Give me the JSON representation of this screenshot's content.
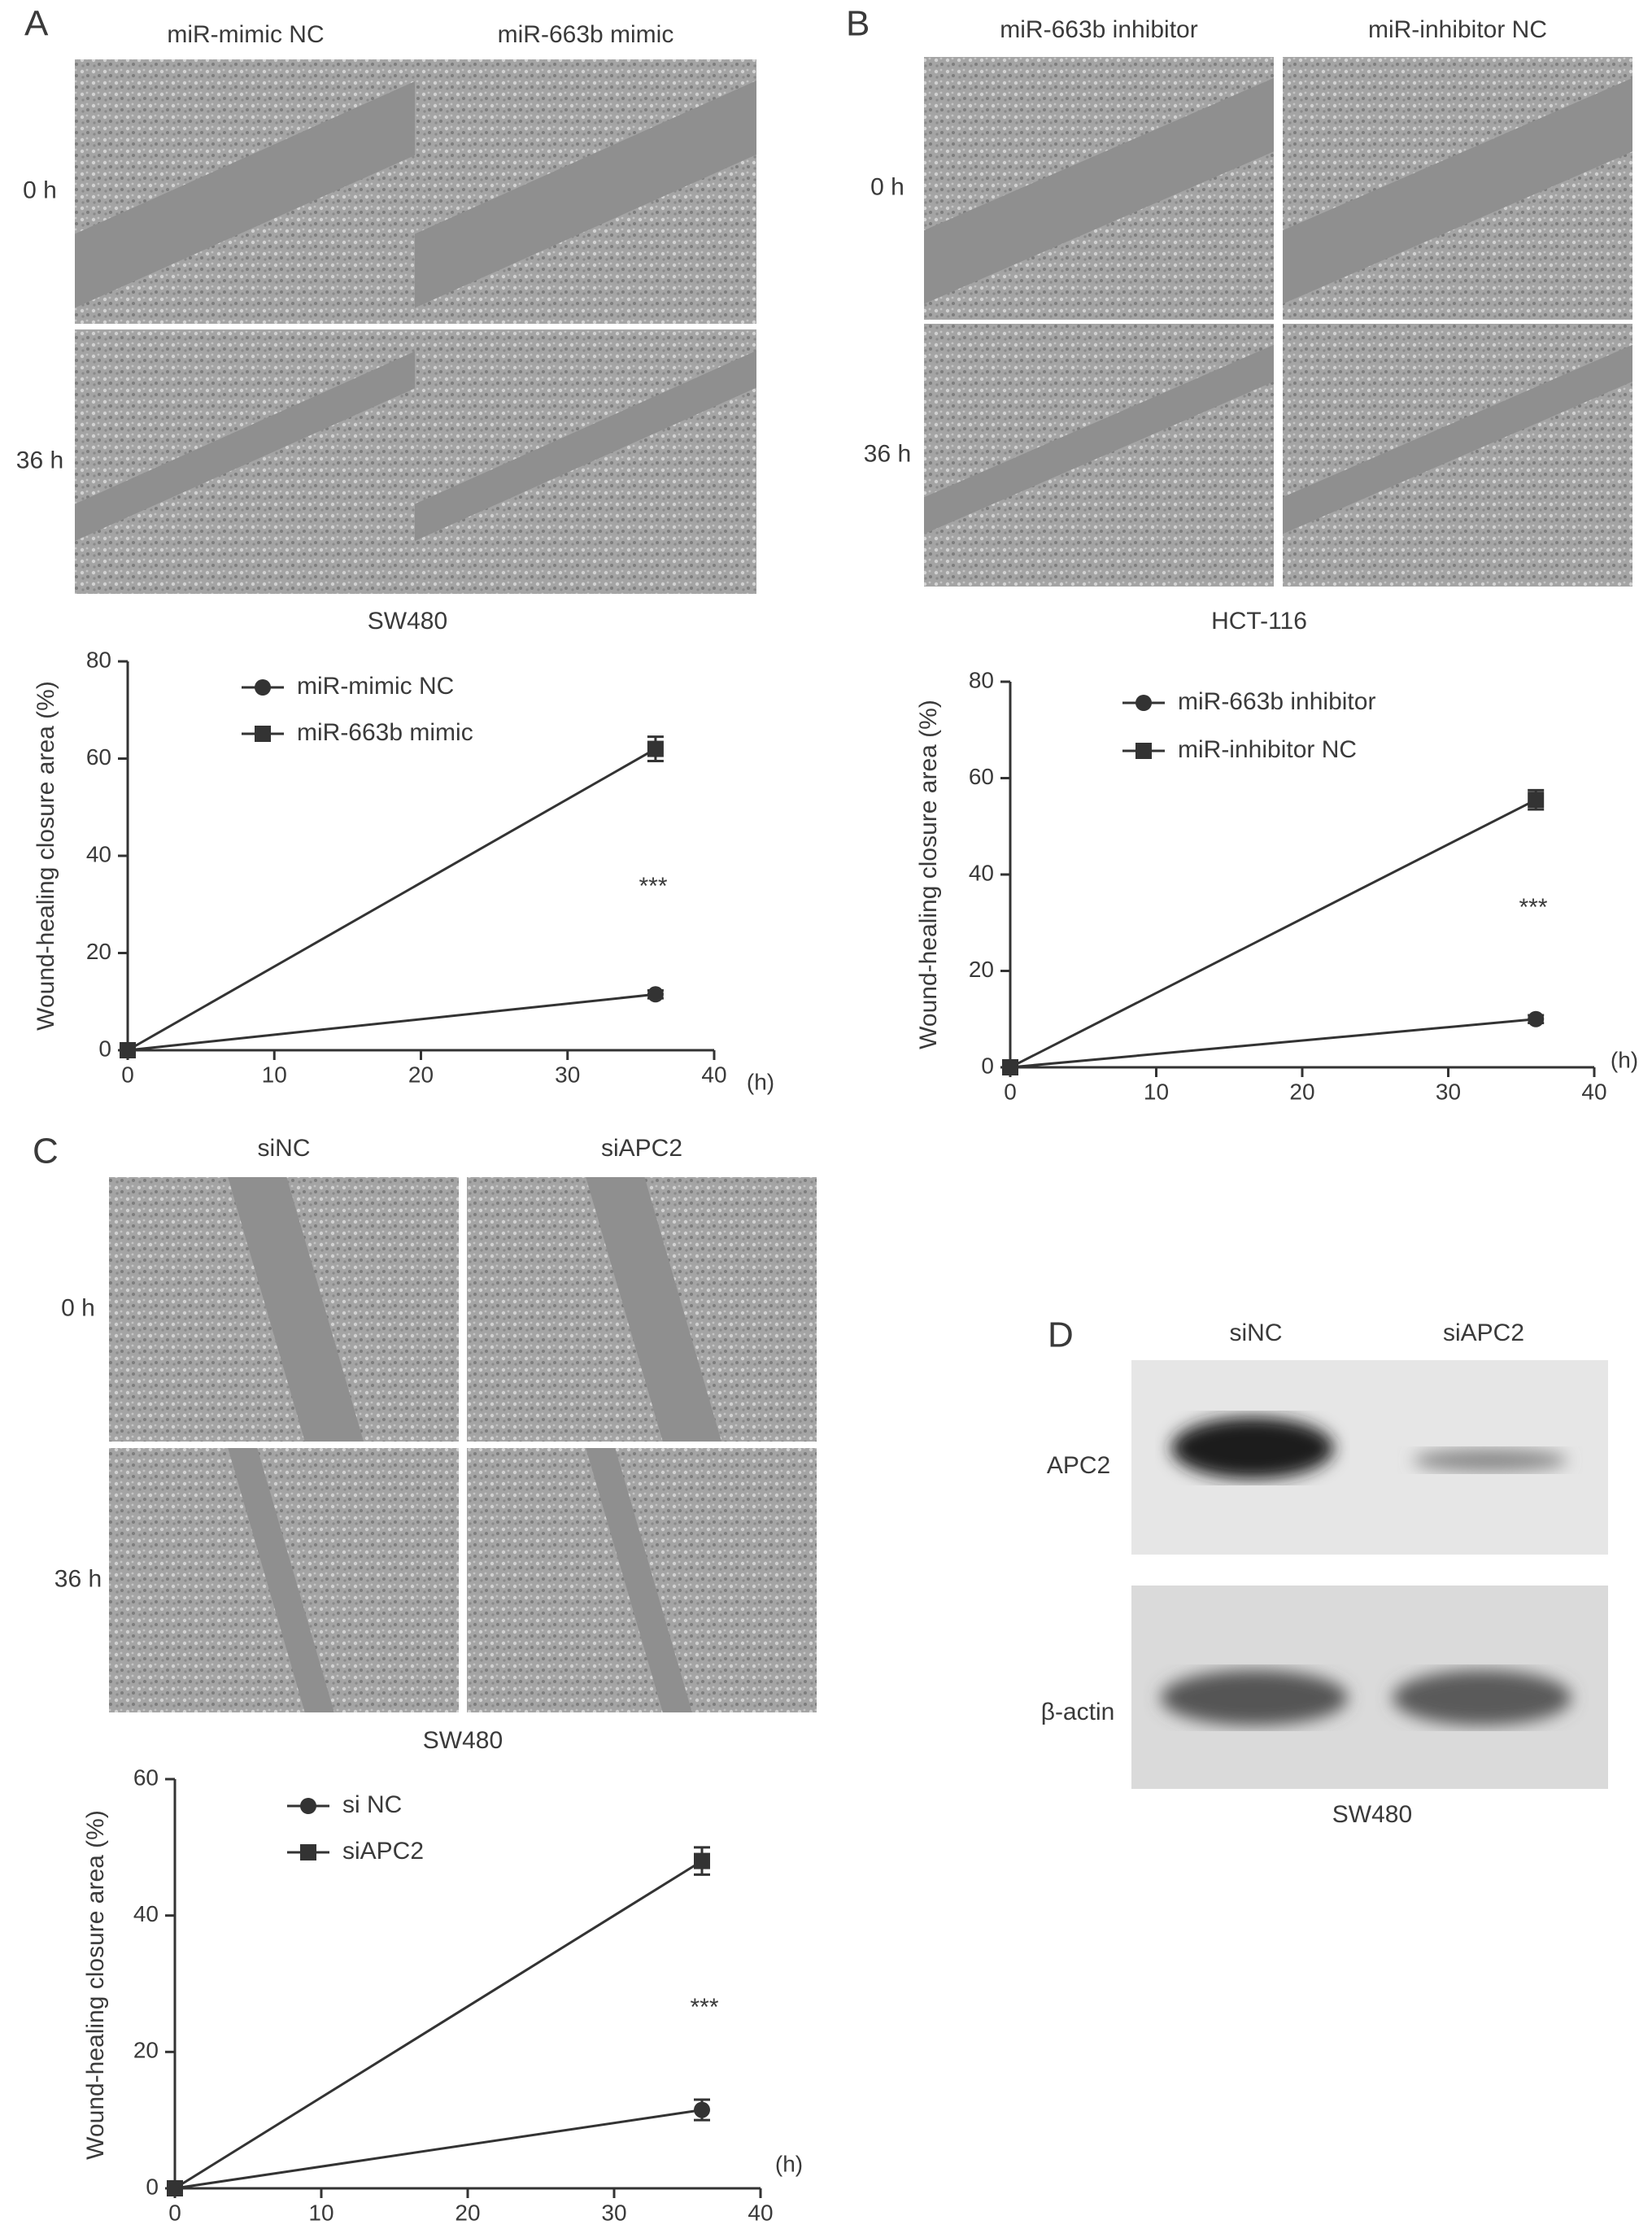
{
  "panels": [
    {
      "label": "A",
      "column_labels": [
        "miR-mimic NC",
        "miR-663b mimic"
      ],
      "row_labels": [
        "0 h",
        "36 h"
      ],
      "cell_line": "SW480"
    },
    {
      "label": "B",
      "column_labels": [
        "miR-663b inhibitor",
        "miR-inhibitor NC"
      ],
      "row_labels": [
        "0 h",
        "36 h"
      ],
      "cell_line": "HCT-116"
    },
    {
      "label": "C",
      "column_labels": [
        "siNC",
        "siAPC2"
      ],
      "row_labels": [
        "0 h",
        "36 h"
      ],
      "cell_line": "SW480"
    },
    {
      "label": "D",
      "lanes": [
        "siNC",
        "siAPC2"
      ],
      "bands": [
        "APC2",
        "β-actin"
      ],
      "cell_line": "SW480"
    }
  ],
  "chart_data": [
    {
      "type": "line",
      "y_label": "Wound-healing closure area (%)",
      "x_label": "(h)",
      "annotation": "***",
      "x": [
        0,
        36
      ],
      "xlim": [
        0,
        40
      ],
      "xticks": [
        0,
        10,
        20,
        30,
        40
      ],
      "ylim": [
        0,
        80
      ],
      "yticks": [
        0,
        20,
        40,
        60,
        80
      ],
      "series": [
        {
          "name": "miR-mimic NC",
          "color": "#333333",
          "marker": "circle",
          "values": [
            0,
            11.5
          ],
          "errors": [
            0,
            0.8
          ]
        },
        {
          "name": "miR-663b mimic",
          "color": "#333333",
          "marker": "square",
          "values": [
            0,
            62
          ],
          "errors": [
            0,
            2.5
          ]
        }
      ]
    },
    {
      "type": "line",
      "y_label": "Wound-healing closure area (%)",
      "x_label": "(h)",
      "annotation": "***",
      "x": [
        0,
        36
      ],
      "xlim": [
        0,
        40
      ],
      "xticks": [
        0,
        10,
        20,
        30,
        40
      ],
      "ylim": [
        0,
        80
      ],
      "yticks": [
        0,
        20,
        40,
        60,
        80
      ],
      "series": [
        {
          "name": "miR-663b inhibitor",
          "color": "#333333",
          "marker": "circle",
          "values": [
            0,
            10
          ],
          "errors": [
            0,
            0.8
          ]
        },
        {
          "name": "miR-inhibitor NC",
          "color": "#333333",
          "marker": "square",
          "values": [
            0,
            55.5
          ],
          "errors": [
            0,
            2
          ]
        }
      ]
    },
    {
      "type": "line",
      "y_label": "Wound-healing closure area (%)",
      "x_label": "(h)",
      "annotation": "***",
      "x": [
        0,
        36
      ],
      "xlim": [
        0,
        40
      ],
      "xticks": [
        0,
        10,
        20,
        30,
        40
      ],
      "ylim": [
        0,
        60
      ],
      "yticks": [
        0,
        20,
        40,
        60
      ],
      "series": [
        {
          "name": "si NC",
          "color": "#333333",
          "marker": "circle",
          "values": [
            0,
            11.5
          ],
          "errors": [
            0,
            1.5
          ]
        },
        {
          "name": "siAPC2",
          "color": "#333333",
          "marker": "square",
          "values": [
            0,
            48
          ],
          "errors": [
            0,
            2
          ]
        }
      ]
    }
  ]
}
